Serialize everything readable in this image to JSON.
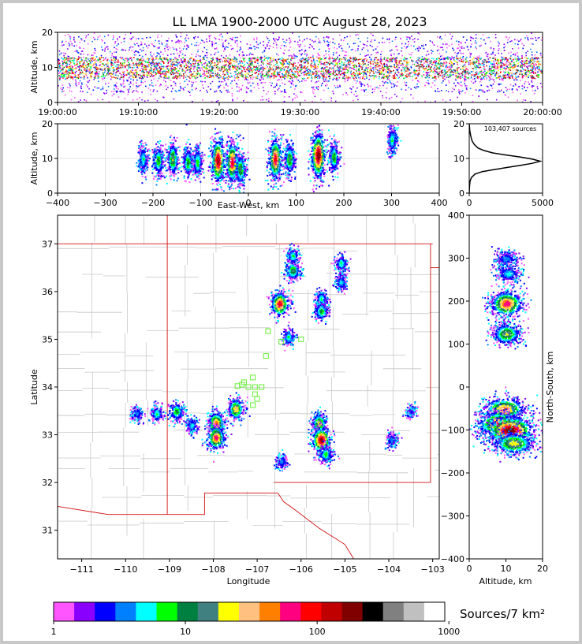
{
  "title": "LL LMA 1900-2000 UTC August 28, 2023",
  "chart_data": [
    {
      "type": "heatmap",
      "panel": "altitude-time",
      "ylabel": "Altitude, km",
      "xlim": [
        "19:00:00",
        "20:00:00"
      ],
      "ylim": [
        0,
        20
      ],
      "x_ticks": [
        "19:00:00",
        "19:10:00",
        "19:20:00",
        "19:30:00",
        "19:40:00",
        "19:50:00",
        "20:00:00"
      ],
      "y_ticks": [
        "0",
        "10",
        "20"
      ],
      "core_altitude_km": [
        7,
        13
      ]
    },
    {
      "type": "heatmap",
      "panel": "altitude-east-west",
      "xlabel": "East-West, km",
      "ylabel": "Altitude, km",
      "xlim": [
        -400,
        400
      ],
      "ylim": [
        0,
        20
      ],
      "x_ticks": [
        "−400",
        "−300",
        "−200",
        "−100",
        "0",
        "100",
        "200",
        "300",
        "400"
      ],
      "y_ticks": [
        "0",
        "10",
        "20"
      ],
      "clusters": [
        {
          "x": -222,
          "y": 10,
          "intensity": 0.35
        },
        {
          "x": -190,
          "y": 9.5,
          "intensity": 0.45
        },
        {
          "x": -160,
          "y": 10,
          "intensity": 0.55
        },
        {
          "x": -128,
          "y": 9,
          "intensity": 0.45
        },
        {
          "x": -108,
          "y": 9,
          "intensity": 0.4
        },
        {
          "x": -65,
          "y": 9.5,
          "intensity": 0.95
        },
        {
          "x": -35,
          "y": 9,
          "intensity": 0.85
        },
        {
          "x": -18,
          "y": 7,
          "intensity": 0.5
        },
        {
          "x": 55,
          "y": 10,
          "intensity": 0.85
        },
        {
          "x": 85,
          "y": 10,
          "intensity": 0.5
        },
        {
          "x": 145,
          "y": 11,
          "intensity": 1.0
        },
        {
          "x": 178,
          "y": 10.5,
          "intensity": 0.45
        },
        {
          "x": 300,
          "y": 15.5,
          "intensity": 0.35
        }
      ]
    },
    {
      "type": "line",
      "panel": "altitude-histogram",
      "annotation": "103,407 sources",
      "xlim": [
        0,
        5000
      ],
      "ylim": [
        0,
        20
      ],
      "x_ticks": [
        "0",
        "5000"
      ],
      "y_ticks": [
        "0",
        "10",
        "20"
      ],
      "x": [
        0,
        20,
        60,
        150,
        400,
        900,
        1700,
        2600,
        3500,
        4300,
        4850,
        4300,
        3500,
        2500,
        1600,
        1000,
        600,
        350,
        200,
        100,
        40,
        0
      ],
      "y": [
        0,
        2,
        3.5,
        4.5,
        5.5,
        6.2,
        6.8,
        7.4,
        8.0,
        8.6,
        9.2,
        9.8,
        10.4,
        11.0,
        11.6,
        12.3,
        13.0,
        14.0,
        15.0,
        16.5,
        18.0,
        20.0
      ]
    },
    {
      "type": "heatmap",
      "panel": "plan-view-map",
      "xlabel": "Longitude",
      "ylabel": "Latitude",
      "xlim": [
        -111.55,
        -102.85
      ],
      "ylim": [
        30.4,
        37.6
      ],
      "x_ticks": [
        "−111",
        "−110",
        "−109",
        "−108",
        "−107",
        "−106",
        "−105",
        "−104",
        "−103"
      ],
      "y_ticks": [
        "31",
        "32",
        "33",
        "34",
        "35",
        "36",
        "37"
      ],
      "clusters": [
        {
          "lon": -106.5,
          "lat": 35.75,
          "intensity": 0.85
        },
        {
          "lon": -106.2,
          "lat": 36.45,
          "intensity": 0.5
        },
        {
          "lon": -106.2,
          "lat": 36.75,
          "intensity": 0.35
        },
        {
          "lon": -105.55,
          "lat": 35.85,
          "intensity": 0.35
        },
        {
          "lon": -105.55,
          "lat": 35.6,
          "intensity": 0.45
        },
        {
          "lon": -105.1,
          "lat": 36.6,
          "intensity": 0.35
        },
        {
          "lon": -105.1,
          "lat": 36.2,
          "intensity": 0.3
        },
        {
          "lon": -106.3,
          "lat": 35.05,
          "intensity": 0.35
        },
        {
          "lon": -107.95,
          "lat": 33.25,
          "intensity": 0.75
        },
        {
          "lon": -107.95,
          "lat": 32.95,
          "intensity": 0.8
        },
        {
          "lon": -107.5,
          "lat": 33.55,
          "intensity": 0.65
        },
        {
          "lon": -108.85,
          "lat": 33.5,
          "intensity": 0.45
        },
        {
          "lon": -109.3,
          "lat": 33.45,
          "intensity": 0.35
        },
        {
          "lon": -109.75,
          "lat": 33.45,
          "intensity": 0.25
        },
        {
          "lon": -108.5,
          "lat": 33.2,
          "intensity": 0.3
        },
        {
          "lon": -105.6,
          "lat": 33.25,
          "intensity": 0.6
        },
        {
          "lon": -105.55,
          "lat": 32.9,
          "intensity": 0.95
        },
        {
          "lon": -105.45,
          "lat": 32.6,
          "intensity": 0.4
        },
        {
          "lon": -106.45,
          "lat": 32.45,
          "intensity": 0.25
        },
        {
          "lon": -103.95,
          "lat": 32.9,
          "intensity": 0.25
        },
        {
          "lon": -103.5,
          "lat": 33.5,
          "intensity": 0.15
        }
      ],
      "stations": [
        {
          "lon": -107.1,
          "lat": 34.2
        },
        {
          "lon": -107.2,
          "lat": 34.0
        },
        {
          "lon": -107.35,
          "lat": 34.05
        },
        {
          "lon": -107.05,
          "lat": 34.0
        },
        {
          "lon": -106.9,
          "lat": 34.0
        },
        {
          "lon": -107.05,
          "lat": 33.85
        },
        {
          "lon": -107.0,
          "lat": 33.75
        },
        {
          "lon": -107.1,
          "lat": 33.62
        },
        {
          "lon": -107.3,
          "lat": 34.1
        },
        {
          "lon": -107.45,
          "lat": 34.02
        },
        {
          "lon": -106.8,
          "lat": 34.65
        },
        {
          "lon": -106.75,
          "lat": 35.17
        },
        {
          "lon": -106.45,
          "lat": 34.95
        },
        {
          "lon": -106.0,
          "lat": 35.0
        }
      ]
    },
    {
      "type": "heatmap",
      "panel": "north-south-altitude",
      "xlabel": "Altitude, km",
      "ylabel": "North-South, km",
      "xlim": [
        0,
        20
      ],
      "ylim": [
        -400,
        400
      ],
      "x_ticks": [
        "0",
        "10",
        "20"
      ],
      "y_ticks": [
        "−400",
        "−300",
        "−200",
        "−100",
        "0",
        "100",
        "200",
        "300",
        "400"
      ],
      "clusters": [
        {
          "x": 10,
          "y": 300,
          "intensity": 0.25
        },
        {
          "x": 10.5,
          "y": 265,
          "intensity": 0.3
        },
        {
          "x": 10,
          "y": 195,
          "intensity": 0.8
        },
        {
          "x": 10,
          "y": 125,
          "intensity": 0.55
        },
        {
          "x": 9.5,
          "y": -50,
          "intensity": 0.7
        },
        {
          "x": 8,
          "y": -85,
          "intensity": 0.8
        },
        {
          "x": 11,
          "y": -100,
          "intensity": 1.0
        },
        {
          "x": 12,
          "y": -130,
          "intensity": 0.6
        }
      ]
    },
    {
      "type": "colorbar",
      "label": "Sources/7 km²",
      "ticks": [
        "1",
        "10",
        "100",
        "1000"
      ],
      "colors": [
        "#ff55ff",
        "#8a00ff",
        "#0000ff",
        "#0080ff",
        "#00ffff",
        "#00ff00",
        "#008040",
        "#408080",
        "#ffff00",
        "#ffc080",
        "#ff8000",
        "#ff0080",
        "#ff0000",
        "#c00000",
        "#800000",
        "#000000",
        "#808080",
        "#c0c0c0",
        "#ffffff"
      ]
    }
  ]
}
